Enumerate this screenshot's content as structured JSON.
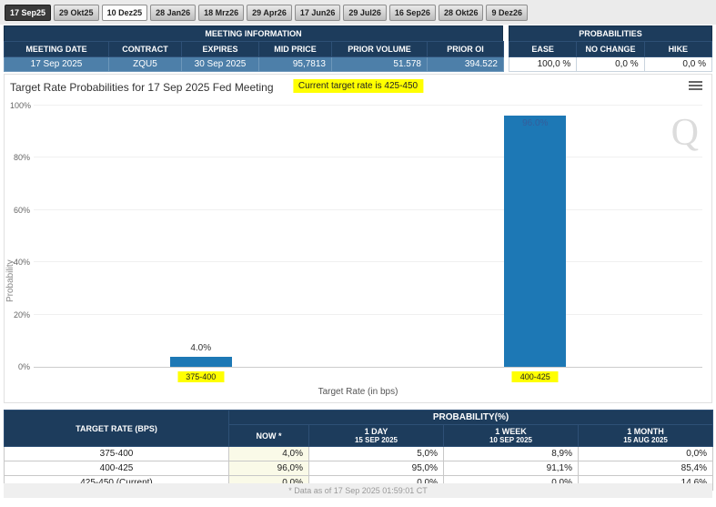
{
  "tabs": [
    {
      "label": "17 Sep25",
      "state": "selected"
    },
    {
      "label": "29 Okt25",
      "state": "normal"
    },
    {
      "label": "10 Dez25",
      "state": "light"
    },
    {
      "label": "28 Jan26",
      "state": "normal"
    },
    {
      "label": "18 Mrz26",
      "state": "normal"
    },
    {
      "label": "29 Apr26",
      "state": "normal"
    },
    {
      "label": "17 Jun26",
      "state": "normal"
    },
    {
      "label": "29 Jul26",
      "state": "normal"
    },
    {
      "label": "16 Sep26",
      "state": "normal"
    },
    {
      "label": "28 Okt26",
      "state": "normal"
    },
    {
      "label": "9 Dez26",
      "state": "normal"
    }
  ],
  "meeting_info": {
    "title": "MEETING INFORMATION",
    "columns": [
      "MEETING DATE",
      "CONTRACT",
      "EXPIRES",
      "MID PRICE",
      "PRIOR VOLUME",
      "PRIOR OI"
    ],
    "row": [
      "17 Sep 2025",
      "ZQU5",
      "30 Sep 2025",
      "95,7813",
      "51.578",
      "394.522"
    ]
  },
  "probabilities_summary": {
    "title": "PROBABILITIES",
    "columns": [
      "EASE",
      "NO CHANGE",
      "HIKE"
    ],
    "row": [
      "100,0 %",
      "0,0 %",
      "0,0 %"
    ]
  },
  "chart": {
    "note": "Current target rate is 425-450",
    "watermark": "Q"
  },
  "chart_data": {
    "type": "bar",
    "title": "Target Rate Probabilities for 17 Sep 2025 Fed Meeting",
    "categories": [
      "375-400",
      "400-425"
    ],
    "values": [
      4.0,
      96.0
    ],
    "bar_labels": [
      "4.0%",
      "96.0%"
    ],
    "xlabel": "Target Rate (in bps)",
    "ylabel": "Probability",
    "ylim": [
      0,
      100
    ],
    "yticks": [
      "0%",
      "20%",
      "40%",
      "60%",
      "80%",
      "100%"
    ],
    "bar_color": "#1d78b5",
    "highlight_color": "#ffff00",
    "grid": true,
    "legend": false
  },
  "bottom_table": {
    "col1_header": "TARGET RATE (BPS)",
    "group_header": "PROBABILITY(%)",
    "sub_headers": [
      {
        "line1": "NOW *",
        "line2": ""
      },
      {
        "line1": "1 DAY",
        "line2": "15 SEP 2025"
      },
      {
        "line1": "1 WEEK",
        "line2": "10 SEP 2025"
      },
      {
        "line1": "1 MONTH",
        "line2": "15 AUG 2025"
      }
    ],
    "rows": [
      {
        "rate": "375-400",
        "now": "4,0%",
        "day": "5,0%",
        "week": "8,9%",
        "month": "0,0%"
      },
      {
        "rate": "400-425",
        "now": "96,0%",
        "day": "95,0%",
        "week": "91,1%",
        "month": "85,4%"
      },
      {
        "rate": "425-450 (Current)",
        "now": "0,0%",
        "day": "0,0%",
        "week": "0,0%",
        "month": "14,6%"
      }
    ]
  },
  "footer": {
    "text": "* Data as of 17 Sep 2025 01:59:01 CT"
  }
}
